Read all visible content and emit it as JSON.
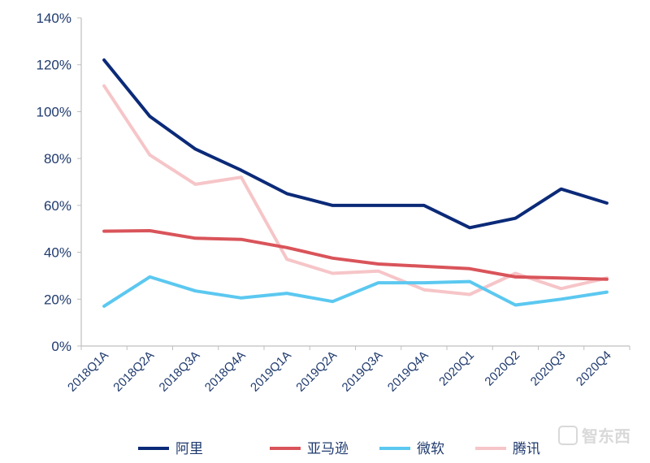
{
  "chart_data": {
    "type": "line",
    "title": "",
    "xlabel": "",
    "ylabel": "",
    "categories": [
      "2018Q1A",
      "2018Q2A",
      "2018Q3A",
      "2018Q4A",
      "2019Q1A",
      "2019Q2A",
      "2019Q3A",
      "2019Q4A",
      "2020Q1",
      "2020Q2",
      "2020Q3",
      "2020Q4"
    ],
    "y_ticks": [
      "0%",
      "20%",
      "40%",
      "60%",
      "80%",
      "100%",
      "120%",
      "140%"
    ],
    "ylim": [
      0,
      140
    ],
    "y_unit": "%",
    "grid": false,
    "legend_position": "bottom",
    "series": [
      {
        "name": "阿里",
        "color": "#0b2a78",
        "values": [
          122,
          98,
          84,
          75,
          65,
          60,
          60,
          60,
          50.5,
          54.5,
          67,
          61
        ]
      },
      {
        "name": "亚马逊",
        "color": "#d9545a",
        "values": [
          49,
          49.2,
          46,
          45.5,
          42,
          37.5,
          35,
          34,
          33,
          29.5,
          29,
          28.5
        ]
      },
      {
        "name": "微软",
        "color": "#5bc8f0",
        "values": [
          17,
          29.5,
          23.5,
          20.5,
          22.5,
          19,
          27,
          27,
          27.5,
          17.5,
          20,
          23
        ]
      },
      {
        "name": "腾讯",
        "color": "#f6c5c8",
        "values": [
          111,
          81.5,
          69,
          72,
          37,
          31,
          32,
          24,
          22,
          31,
          24.5,
          29
        ]
      }
    ],
    "watermark": "智东西"
  }
}
